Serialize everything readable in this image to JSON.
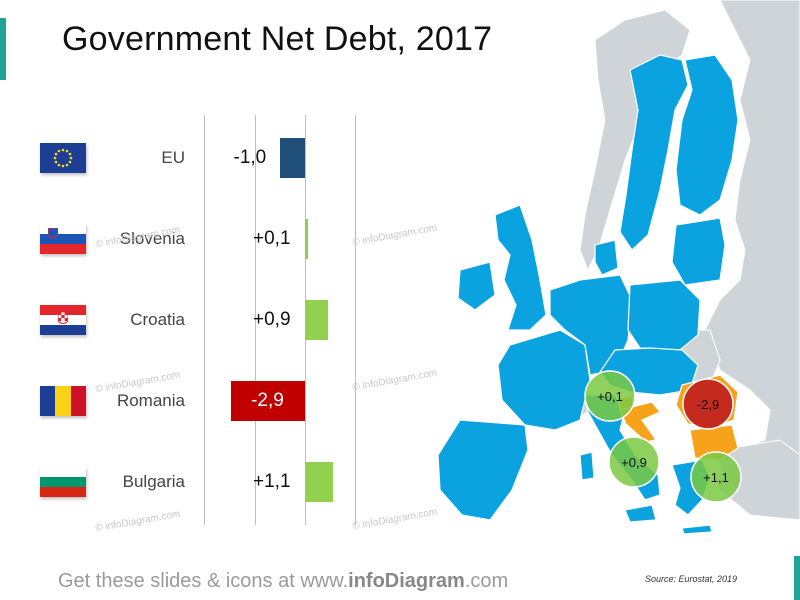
{
  "title": "Government Net Debt, 2017",
  "footer": {
    "prefix": "Get these slides & icons at www.",
    "brand": "infoDiagram",
    "suffix": ".com"
  },
  "source": "Source: Eurostat, 2019",
  "watermark": "© infoDiagram.com",
  "chart_data": {
    "type": "bar",
    "orientation": "horizontal",
    "title": "Government Net Debt, 2017",
    "categories": [
      "EU",
      "Slovenia",
      "Croatia",
      "Romania",
      "Bulgaria"
    ],
    "values": [
      -1.0,
      0.1,
      0.9,
      -2.9,
      1.1
    ],
    "value_labels": [
      "-1,0",
      "+0,1",
      "+0,9",
      "-2,9",
      "+1,1"
    ],
    "bar_colors": [
      "#1f4e79",
      "#92d050",
      "#92d050",
      "#c00000",
      "#92d050"
    ],
    "xlim": [
      -3,
      2
    ],
    "grid": true
  },
  "map": {
    "bubbles": [
      {
        "label": "+0,1",
        "color": "#7ac943"
      },
      {
        "label": "-2,9",
        "color": "#c0201e"
      },
      {
        "label": "+0,9",
        "color": "#7ac943"
      },
      {
        "label": "+1,1",
        "color": "#7ac943"
      }
    ],
    "colors": {
      "eu": "#0aa3e0",
      "highlight": "#f7a21b",
      "other": "#cfd4d8",
      "border": "#ffffff"
    }
  }
}
